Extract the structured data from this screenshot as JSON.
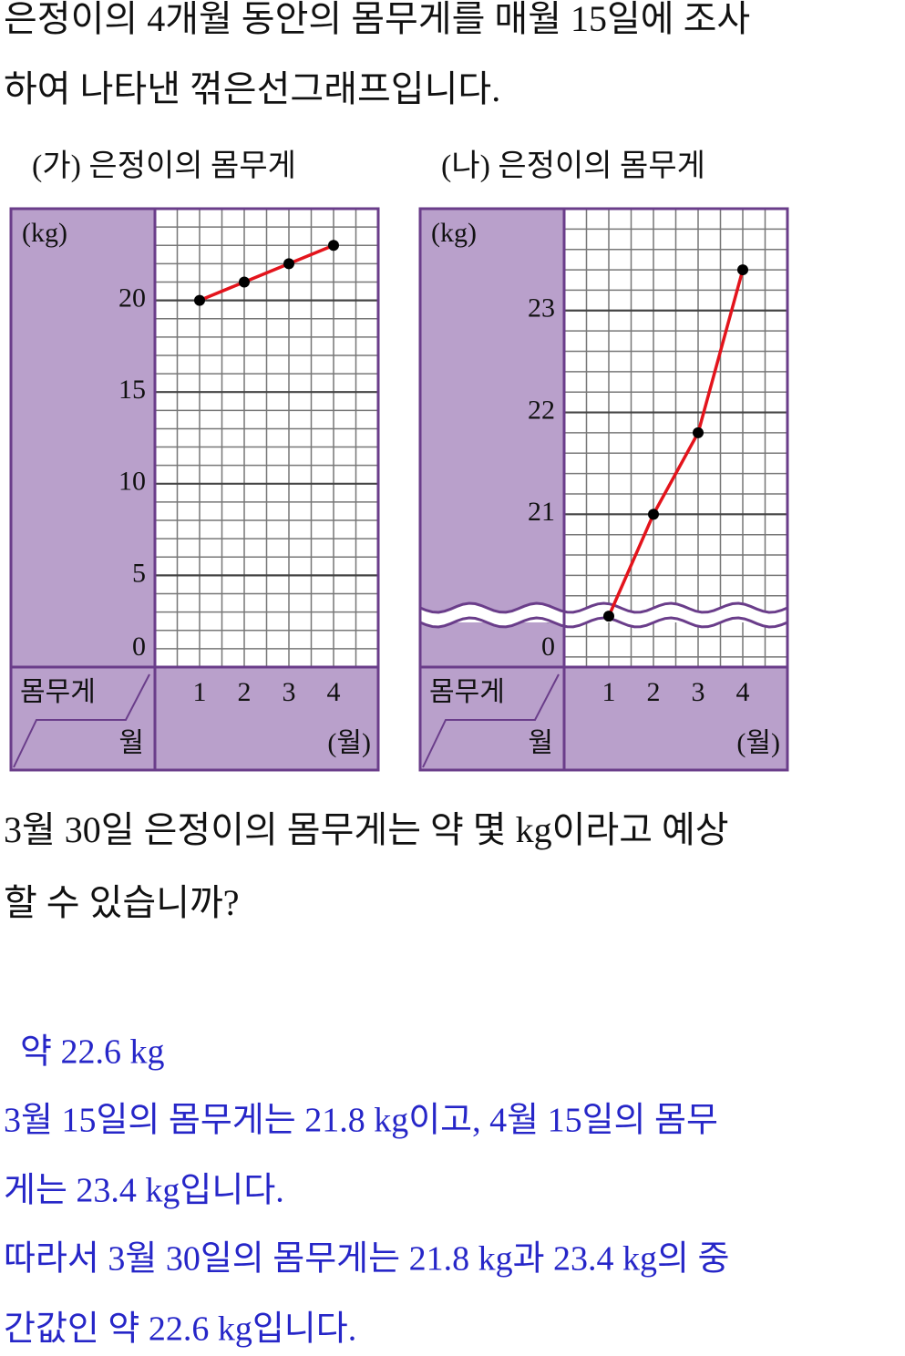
{
  "question": [
    "은정이의 4개월 동안의 몸무게를 매월 15일에 조사",
    "하여 나타낸 꺾은선그래프입니다."
  ],
  "chart_data": [
    {
      "type": "line",
      "title": "(가) 은정이의 몸무게",
      "y_label": "(kg)",
      "x_label": "(월)",
      "corner_value_label": "몸무게",
      "corner_category_label": "월",
      "categories": [
        "1",
        "2",
        "3",
        "4"
      ],
      "values": [
        20,
        21,
        22,
        23
      ],
      "color": "#e3141c",
      "marker_color": "#000000",
      "ylim": [
        0,
        25
      ],
      "yticks": [
        0,
        5,
        10,
        15,
        20
      ],
      "grid": true,
      "axis_break": false
    },
    {
      "type": "line",
      "title": "(나) 은정이의 몸무게",
      "y_label": "(kg)",
      "x_label": "(월)",
      "corner_value_label": "몸무게",
      "corner_category_label": "월",
      "categories": [
        "1",
        "2",
        "3",
        "4"
      ],
      "values": [
        20,
        21,
        21.8,
        23.4
      ],
      "color": "#e3141c",
      "marker_color": "#000000",
      "ylim": [
        19.5,
        24
      ],
      "yticks": [
        0,
        20,
        21,
        22,
        23
      ],
      "grid": true,
      "axis_break": true
    }
  ],
  "question2": [
    "3월 30일 은정이의 몸무게는 약 몇 kg이라고 예상",
    "할 수 있습니까?"
  ],
  "answer": "약 22.6 kg",
  "explanation": [
    "3월 15일의 몸무게는 21.8 kg이고, 4월 15일의 몸무",
    "게는 23.4 kg입니다.",
    "따라서 3월 30일의 몸무게는 21.8 kg과 23.4 kg의 중",
    "간값인 약 22.6 kg입니다."
  ]
}
